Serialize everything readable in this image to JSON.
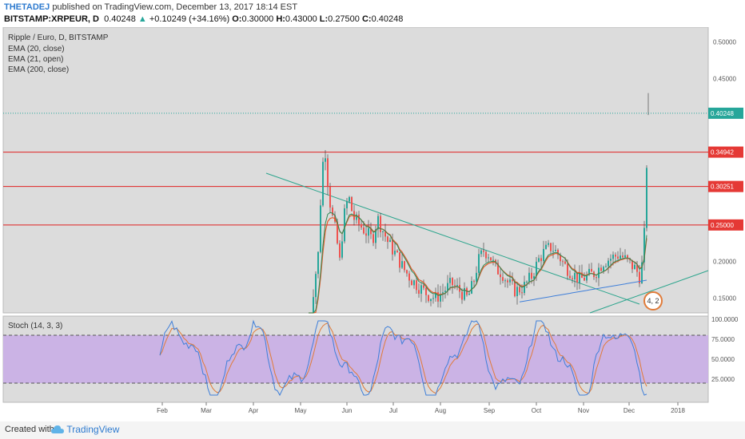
{
  "header": {
    "author": "THETADEJ",
    "published": "published on TradingView.com, December 13, 2017 18:14 EST",
    "symbol": "BITSTAMP:XRPEUR, D",
    "last": "0.40248",
    "change": "+0.10249 (+34.16%)",
    "o_label": "O:",
    "o": "0.30000",
    "h_label": "H:",
    "h": "0.43000",
    "l_label": "L:",
    "l": "0.27500",
    "c_label": "C:",
    "c": "0.40248"
  },
  "legend": {
    "title": "Ripple / Euro, D, BITSTAMP",
    "items": [
      "EMA (20, close)",
      "EMA (21, open)",
      "EMA (200, close)"
    ]
  },
  "stoch_label": "Stoch (14, 3, 3)",
  "footer": {
    "created": "Created with",
    "brand": "TradingView"
  },
  "badge": "4, 2",
  "colors": {
    "up": "#26a69a",
    "down": "#ef5350",
    "ema20": "#2e8b57",
    "ema21": "#e05a2b",
    "ema200": "#3f7fd9",
    "hline": "#e02020",
    "trend": "#2ca58d",
    "stoch_k": "#3f7fd9",
    "stoch_d": "#e07b39",
    "stoch_band": "#c9aee6"
  },
  "chart_data": {
    "type": "candlestick",
    "y_ticks": [
      "0.50000",
      "0.45000",
      "0.40000",
      "0.35000",
      "0.30000",
      "0.25000",
      "0.20000",
      "0.15000"
    ],
    "ylim": [
      0.13,
      0.52
    ],
    "x_ticks": [
      "Feb",
      "Mar",
      "Apr",
      "May",
      "Jun",
      "Jul",
      "Aug",
      "Sep",
      "Oct",
      "Nov",
      "Dec",
      "2018"
    ],
    "horizontal_levels": [
      {
        "value": 0.34942,
        "label": "0.34942"
      },
      {
        "value": 0.30251,
        "label": "0.30251"
      },
      {
        "value": 0.25,
        "label": "0.25000"
      }
    ],
    "last_price": {
      "value": 0.40248,
      "label": "0.40248"
    },
    "stoch_ticks": [
      "100.0000",
      "75.0000",
      "50.0000",
      "25.0000"
    ],
    "stoch_levels": [
      80,
      20
    ]
  }
}
